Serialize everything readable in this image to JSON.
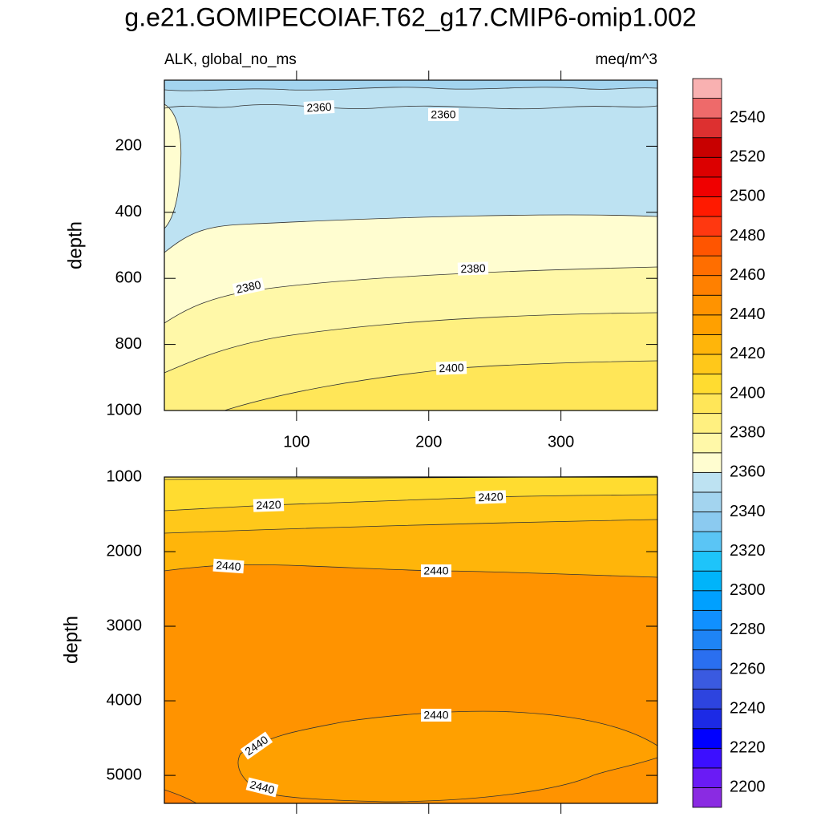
{
  "title": "g.e21.GOMIPECOIAF.T62_g17.CMIP6-omip1.002",
  "chart_data": [
    {
      "type": "contour",
      "subtitle_left": "ALK, global_no_ms",
      "subtitle_right": "meq/m^3",
      "ylabel": "depth",
      "xlim": [
        0,
        373
      ],
      "xticks": [
        100,
        200,
        300
      ],
      "ylim": [
        0,
        1000
      ],
      "yticks": [
        200,
        400,
        600,
        800,
        1000
      ],
      "contour_labels": [
        2360,
        2360,
        2380,
        2380,
        2400
      ]
    },
    {
      "type": "contour",
      "ylabel": "depth",
      "xlim": [
        0,
        373
      ],
      "ylim": [
        1000,
        5375
      ],
      "yticks": [
        1000,
        2000,
        3000,
        4000,
        5000
      ],
      "contour_labels": [
        2420,
        2420,
        2440,
        2440,
        2440,
        2440,
        2440
      ]
    }
  ],
  "colorbar": {
    "levels": [
      2190,
      2200,
      2210,
      2220,
      2230,
      2240,
      2250,
      2260,
      2270,
      2280,
      2290,
      2300,
      2310,
      2320,
      2330,
      2340,
      2350,
      2360,
      2370,
      2380,
      2390,
      2400,
      2410,
      2420,
      2430,
      2440,
      2450,
      2460,
      2470,
      2480,
      2490,
      2500,
      2510,
      2520,
      2530,
      2540,
      2550,
      2560
    ],
    "colors": [
      "#8a2be2",
      "#6a1bf5",
      "#3c0fff",
      "#0000ff",
      "#1c2ae6",
      "#2d44df",
      "#3a5ae0",
      "#2a6ff0",
      "#1e84f5",
      "#1090ff",
      "#00a0ff",
      "#00b4fa",
      "#1ec4fa",
      "#5ac5f5",
      "#8bcaf0",
      "#a3d4ef",
      "#bde2f2",
      "#fffdd0",
      "#fff8a8",
      "#fff080",
      "#ffe658",
      "#ffdc30",
      "#ffc81a",
      "#ffb50a",
      "#ffa000",
      "#ff9300",
      "#ff8000",
      "#ff6e00",
      "#ff5500",
      "#ff3810",
      "#ff1a00",
      "#f00000",
      "#dc0000",
      "#c80000",
      "#dd3030",
      "#ee6a6a",
      "#f9b1b1"
    ],
    "ticks": [
      2200,
      2220,
      2240,
      2260,
      2280,
      2300,
      2320,
      2340,
      2360,
      2380,
      2400,
      2420,
      2440,
      2460,
      2480,
      2500,
      2520,
      2540
    ]
  }
}
